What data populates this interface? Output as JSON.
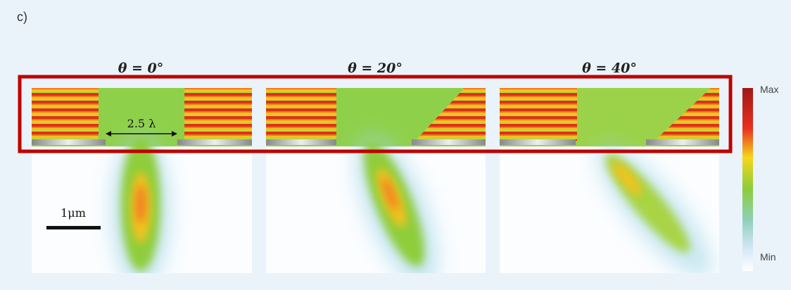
{
  "panel_label": "c)",
  "panels": [
    {
      "title": "θ = 0°"
    },
    {
      "title": "θ = 20°"
    },
    {
      "title": "θ = 40°"
    }
  ],
  "annotations": {
    "width": "2.5 λ",
    "scale_bar": "1μm"
  },
  "colorbar": {
    "max": "Max",
    "min": "Min"
  }
}
